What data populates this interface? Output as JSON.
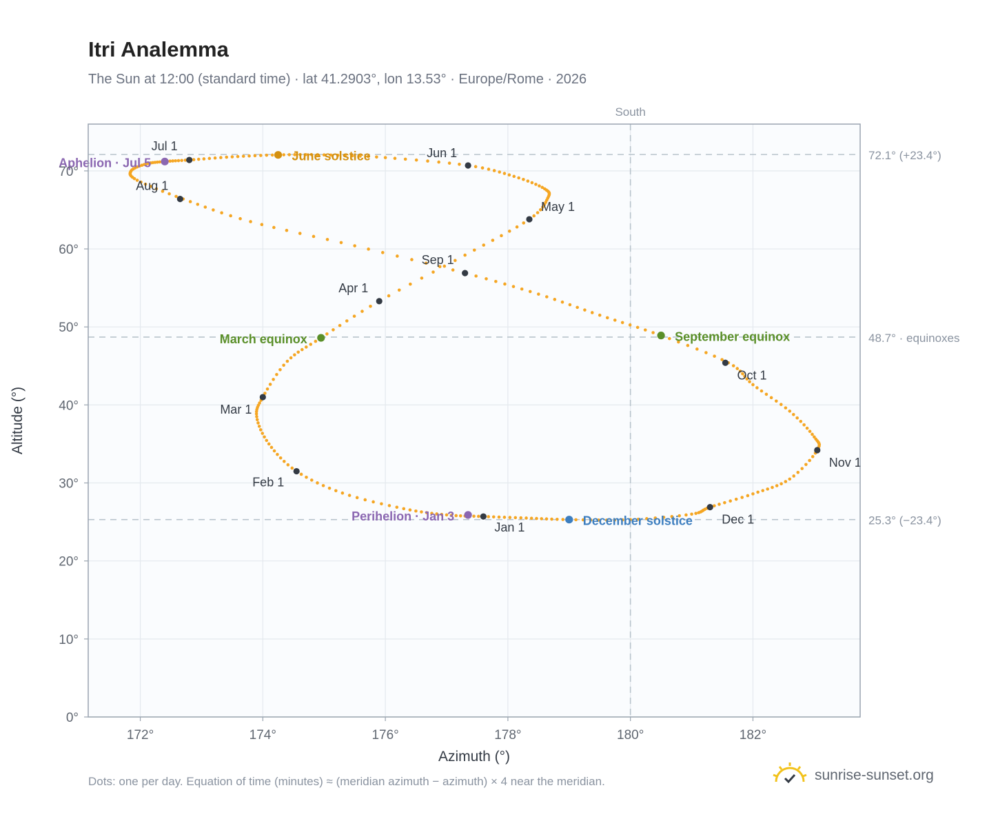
{
  "title": "Itri Analemma",
  "subtitle": "The Sun at 12:00 (standard time) · lat 41.2903°, lon 13.53° · Europe/Rome · 2026",
  "footnote": "Dots: one per day. Equation of time (minutes) ≈ (meridian azimuth − azimuth) × 4 near the meridian.",
  "brand": {
    "text": "sunrise-sunset.org",
    "icon": "sun-check-icon"
  },
  "chart_data": {
    "type": "scatter",
    "title": "Itri Analemma",
    "xlabel": "Azimuth (°)",
    "ylabel": "Altitude (°)",
    "xlim": [
      171.15,
      183.75
    ],
    "ylim": [
      0,
      76
    ],
    "x_ticks": [
      172,
      174,
      176,
      178,
      180,
      182
    ],
    "x_tick_labels": [
      "172°",
      "174°",
      "176°",
      "178°",
      "180°",
      "182°"
    ],
    "y_ticks": [
      0,
      10,
      20,
      30,
      40,
      50,
      60,
      70
    ],
    "y_tick_labels": [
      "0°",
      "10°",
      "20°",
      "30°",
      "40°",
      "50°",
      "60°",
      "70°"
    ],
    "grid": true,
    "colors": {
      "path": "#f5a623",
      "month": "#333a44",
      "march": "#5a8f29",
      "june": "#d4900f",
      "september": "#5a8f29",
      "december": "#3d7ebf",
      "apsis": "#8b67b1",
      "reference": "#b8c3cc",
      "frame": "#9aa4b0",
      "plot_bg": "#fafcfe"
    },
    "reference_lines": [
      {
        "altitude": 72.1,
        "label": "72.1° (+23.4°)"
      },
      {
        "altitude": 48.7,
        "label": "48.7° · equinoxes"
      },
      {
        "altitude": 25.3,
        "label": "25.3° (−23.4°)"
      }
    ],
    "meridian": {
      "azimuth": 180,
      "label": "South"
    },
    "path_keypoints": [
      [
        177.6,
        25.7
      ],
      [
        178.3,
        25.5
      ],
      [
        179.0,
        25.3
      ],
      [
        180.0,
        25.3
      ],
      [
        181.0,
        26.0
      ],
      [
        181.3,
        26.9
      ],
      [
        182.0,
        28.6
      ],
      [
        182.6,
        30.5
      ],
      [
        183.05,
        34.2
      ],
      [
        183.0,
        35.9
      ],
      [
        182.6,
        39.2
      ],
      [
        182.0,
        42.6
      ],
      [
        181.6,
        45.4
      ],
      [
        180.5,
        48.9
      ],
      [
        179.5,
        51.5
      ],
      [
        178.5,
        54.2
      ],
      [
        177.3,
        56.9
      ],
      [
        175.5,
        60.4
      ],
      [
        173.8,
        63.5
      ],
      [
        172.7,
        66.4
      ],
      [
        171.95,
        68.8
      ],
      [
        171.85,
        70.0
      ],
      [
        172.1,
        70.9
      ],
      [
        172.4,
        71.2
      ],
      [
        172.8,
        71.4
      ],
      [
        173.5,
        71.8
      ],
      [
        174.25,
        72.05
      ],
      [
        175.0,
        72.05
      ],
      [
        176.0,
        71.7
      ],
      [
        177.35,
        70.7
      ],
      [
        178.1,
        69.3
      ],
      [
        178.6,
        67.7
      ],
      [
        178.65,
        66.5
      ],
      [
        178.35,
        63.8
      ],
      [
        177.3,
        59.2
      ],
      [
        175.9,
        53.3
      ],
      [
        174.95,
        48.6
      ],
      [
        174.4,
        45.6
      ],
      [
        174.0,
        41.0
      ],
      [
        173.9,
        38.5
      ],
      [
        174.1,
        35.0
      ],
      [
        174.55,
        31.5
      ],
      [
        175.3,
        28.7
      ],
      [
        176.3,
        26.7
      ],
      [
        177.0,
        25.9
      ],
      [
        177.6,
        25.7
      ]
    ],
    "month_markers": [
      {
        "label": "Jan 1",
        "az": 177.6,
        "alt": 25.7,
        "anchor": "start",
        "dx": 16,
        "dy": 22
      },
      {
        "label": "Feb 1",
        "az": 174.55,
        "alt": 31.5,
        "anchor": "end",
        "dx": -18,
        "dy": 22
      },
      {
        "label": "Mar 1",
        "az": 174.0,
        "alt": 41.0,
        "anchor": "end",
        "dx": -16,
        "dy": 24
      },
      {
        "label": "Apr 1",
        "az": 175.9,
        "alt": 53.3,
        "anchor": "end",
        "dx": -16,
        "dy": -13
      },
      {
        "label": "May 1",
        "az": 178.35,
        "alt": 63.8,
        "anchor": "start",
        "dx": 17,
        "dy": -12
      },
      {
        "label": "Jun 1",
        "az": 177.35,
        "alt": 70.7,
        "anchor": "end",
        "dx": -16,
        "dy": -12
      },
      {
        "label": "Jul 1",
        "az": 172.8,
        "alt": 71.4,
        "anchor": "end",
        "dx": -17,
        "dy": -14
      },
      {
        "label": "Aug 1",
        "az": 172.65,
        "alt": 66.4,
        "anchor": "end",
        "dx": -17,
        "dy": -13
      },
      {
        "label": "Sep 1",
        "az": 177.3,
        "alt": 56.9,
        "anchor": "end",
        "dx": -16,
        "dy": -13
      },
      {
        "label": "Oct 1",
        "az": 181.55,
        "alt": 45.4,
        "anchor": "start",
        "dx": 17,
        "dy": 24
      },
      {
        "label": "Nov 1",
        "az": 183.05,
        "alt": 34.2,
        "anchor": "start",
        "dx": 17,
        "dy": 24
      },
      {
        "label": "Dec 1",
        "az": 181.3,
        "alt": 26.9,
        "anchor": "start",
        "dx": 17,
        "dy": 24
      }
    ],
    "events": [
      {
        "label": "March equinox",
        "az": 174.95,
        "alt": 48.6,
        "color": "#5a8f29",
        "anchor": "end",
        "dx": -20,
        "dy": 8
      },
      {
        "label": "June solstice",
        "az": 174.25,
        "alt": 72.05,
        "color": "#d4900f",
        "anchor": "start",
        "dx": 20,
        "dy": 8
      },
      {
        "label": "September equinox",
        "az": 180.5,
        "alt": 48.9,
        "color": "#5a8f29",
        "anchor": "start",
        "dx": 20,
        "dy": 8
      },
      {
        "label": "December solstice",
        "az": 179.0,
        "alt": 25.3,
        "color": "#3d7ebf",
        "anchor": "start",
        "dx": 20,
        "dy": 8
      },
      {
        "label": "Aphelion · Jul 5",
        "az": 172.4,
        "alt": 71.2,
        "color": "#8b67b1",
        "anchor": "end",
        "dx": -20,
        "dy": 8
      },
      {
        "label": "Perihelion · Jan 3",
        "az": 177.35,
        "alt": 25.9,
        "color": "#8b67b1",
        "anchor": "end",
        "dx": -20,
        "dy": 8
      }
    ]
  }
}
